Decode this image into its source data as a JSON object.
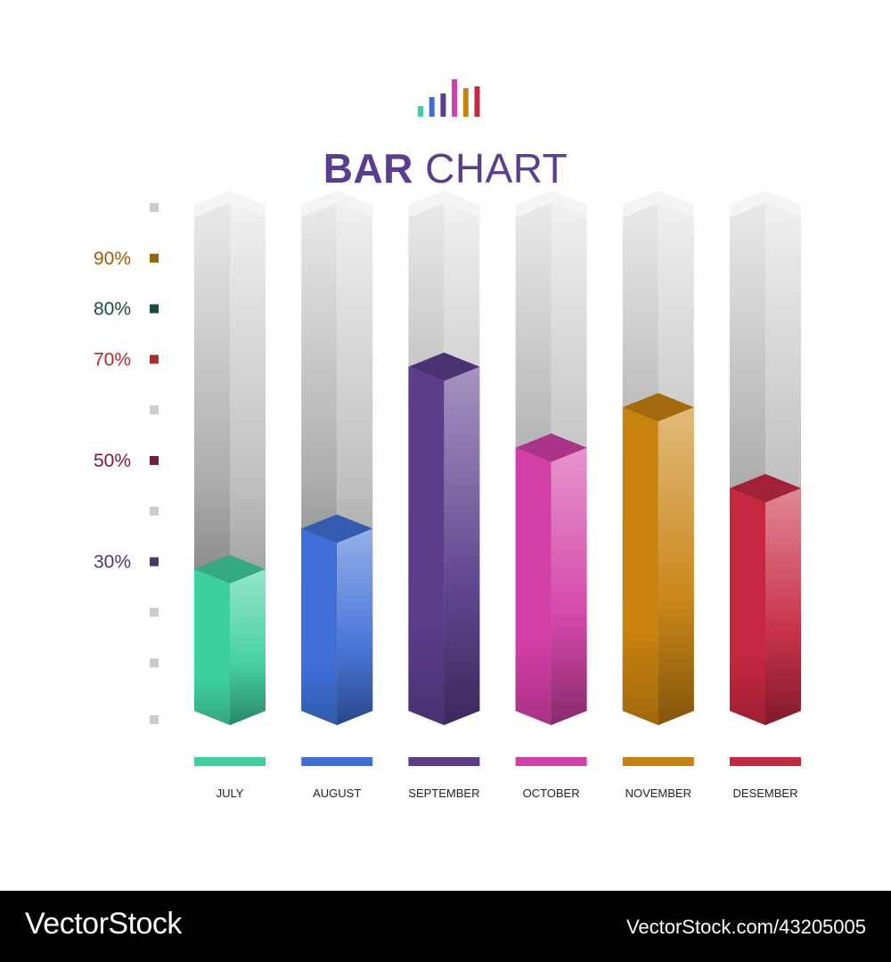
{
  "header": {
    "title_bold": "BAR",
    "title_light": "CHART",
    "icon_colors": [
      "#3ecfa0",
      "#3f6fd6",
      "#5b3d8c",
      "#d23fa6",
      "#c8820f",
      "#c52840"
    ]
  },
  "chart_data": {
    "type": "bar",
    "title": "BAR CHART",
    "categories": [
      "JULY",
      "AUGUST",
      "SEPTEMBER",
      "OCTOBER",
      "NOVEMBER",
      "DESEMBER"
    ],
    "values": [
      28,
      36,
      68,
      52,
      60,
      44
    ],
    "ylim": [
      0,
      100
    ],
    "colors": [
      "#3ecfa0",
      "#3f6fd6",
      "#5b3d8c",
      "#d23fa6",
      "#c8820f",
      "#c52840"
    ],
    "y_ticks": [
      {
        "value": 100,
        "label": "",
        "color": "#cccccc"
      },
      {
        "value": 90,
        "label": "90%",
        "color": "#9a6209"
      },
      {
        "value": 80,
        "label": "80%",
        "color": "#1f4a42"
      },
      {
        "value": 70,
        "label": "70%",
        "color": "#b52a2a"
      },
      {
        "value": 60,
        "label": "",
        "color": "#cccccc"
      },
      {
        "value": 50,
        "label": "50%",
        "color": "#7a1a3a"
      },
      {
        "value": 40,
        "label": "",
        "color": "#cccccc"
      },
      {
        "value": 30,
        "label": "30%",
        "color": "#4a3a6a"
      },
      {
        "value": 20,
        "label": "",
        "color": "#cccccc"
      },
      {
        "value": 10,
        "label": "",
        "color": "#cccccc"
      }
    ],
    "grid": false
  },
  "watermark": {
    "brand": "VectorStock",
    "url": "VectorStock.com/43205005"
  }
}
